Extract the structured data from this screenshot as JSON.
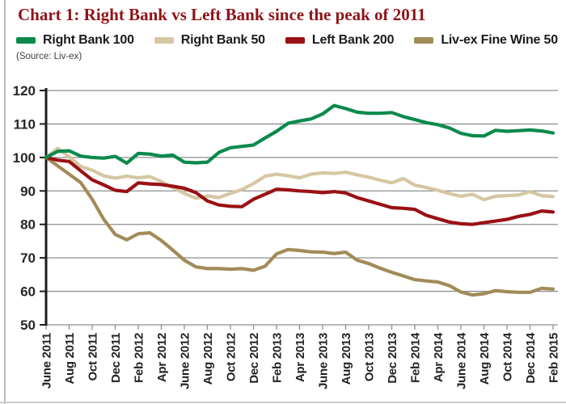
{
  "header": {
    "title_prefix": "Chart 1:",
    "title_rest": " Right Bank vs Left Bank since the peak of 2011",
    "source": "(Source: Liv-ex)"
  },
  "legend": {
    "items": [
      {
        "label": "Right Bank 100",
        "color": "#0b8a4c"
      },
      {
        "label": "Right Bank 50",
        "color": "#d4c7a2"
      },
      {
        "label": "Left Bank 200",
        "color": "#9a1114"
      },
      {
        "label": "Liv-ex Fine Wine 50",
        "color": "#a28b59"
      }
    ]
  },
  "chart_data": {
    "type": "line",
    "title": "Chart 1: Right Bank vs Left Bank since the peak of 2011",
    "source": "(Source: Liv-ex)",
    "x_unit": "month",
    "x_start": "June 2011",
    "x_end": "Feb 2015",
    "x_tick_labels": [
      "June 2011",
      "Aug 2011",
      "Oct 2011",
      "Dec 2011",
      "Feb 2012",
      "Apr 2012",
      "June 2012",
      "Aug 2012",
      "Oct 2012",
      "Dec 2012",
      "Feb 2013",
      "Apr 2013",
      "June 2013",
      "Aug 2013",
      "Oct 2013",
      "Dec 2013",
      "Feb 2014",
      "Apr 2014",
      "June 2014",
      "Aug 2014",
      "Oct 2014",
      "Dec 2014",
      "Feb 2015"
    ],
    "ylim": [
      50,
      120
    ],
    "y_ticks": [
      50,
      60,
      70,
      80,
      90,
      100,
      110,
      120
    ],
    "grid": true,
    "legend_position": "top",
    "series": [
      {
        "name": "Right Bank 100",
        "color": "#0b8a4c",
        "values": [
          100,
          101.8,
          102,
          100.4,
          100,
          99.8,
          100.3,
          98.3,
          101.2,
          101,
          100.4,
          100.7,
          98.6,
          98.4,
          98.6,
          101.5,
          102.9,
          103.3,
          103.7,
          105.8,
          107.8,
          110.2,
          110.9,
          111.5,
          113,
          115.5,
          114.6,
          113.5,
          113.2,
          113.2,
          113.4,
          112.2,
          111.3,
          110.4,
          109.8,
          108.8,
          107.2,
          106.5,
          106.4,
          108.1,
          107.8,
          108,
          108.2,
          107.9,
          107.3
        ]
      },
      {
        "name": "Right Bank 50",
        "color": "#d4c7a2",
        "values": [
          100,
          102.7,
          100.2,
          97.3,
          96.2,
          94.5,
          93.8,
          94.4,
          93.9,
          94.3,
          92.8,
          91,
          89.3,
          87.8,
          88.5,
          88,
          89.3,
          90.4,
          92.2,
          94.4,
          95,
          94.5,
          93.9,
          95,
          95.4,
          95.2,
          95.6,
          94.8,
          94.1,
          93.2,
          92.4,
          93.7,
          91.7,
          91,
          90.2,
          89.2,
          88.4,
          89,
          87.4,
          88.4,
          88.6,
          88.8,
          89.8,
          88.6,
          88.3
        ]
      },
      {
        "name": "Left Bank 200",
        "color": "#9a1114",
        "values": [
          100,
          99.2,
          98.8,
          96,
          93.3,
          91.8,
          90.2,
          89.8,
          92.4,
          92.1,
          91.9,
          91.4,
          90.8,
          89.5,
          87,
          85.8,
          85.4,
          85.3,
          87.5,
          89,
          90.5,
          90.3,
          90,
          89.8,
          89.5,
          89.8,
          89.4,
          88,
          87,
          86,
          85,
          84.8,
          84.5,
          82.7,
          81.7,
          80.7,
          80.2,
          80,
          80.5,
          81,
          81.5,
          82.4,
          83,
          84,
          83.7
        ]
      },
      {
        "name": "Liv-ex Fine Wine 50",
        "color": "#a28b59",
        "values": [
          100,
          97.5,
          95,
          92.5,
          87.5,
          81.5,
          77,
          75.4,
          77.2,
          77.5,
          75.2,
          72.3,
          69.3,
          67.3,
          66.8,
          66.8,
          66.6,
          66.8,
          66.3,
          67.5,
          71.2,
          72.5,
          72.2,
          71.8,
          71.7,
          71.3,
          71.7,
          69.3,
          68.3,
          66.9,
          65.7,
          64.6,
          63.5,
          63.1,
          62.8,
          61.7,
          59.8,
          58.9,
          59.3,
          60.2,
          59.9,
          59.7,
          59.7,
          60.9,
          60.7
        ]
      }
    ]
  }
}
